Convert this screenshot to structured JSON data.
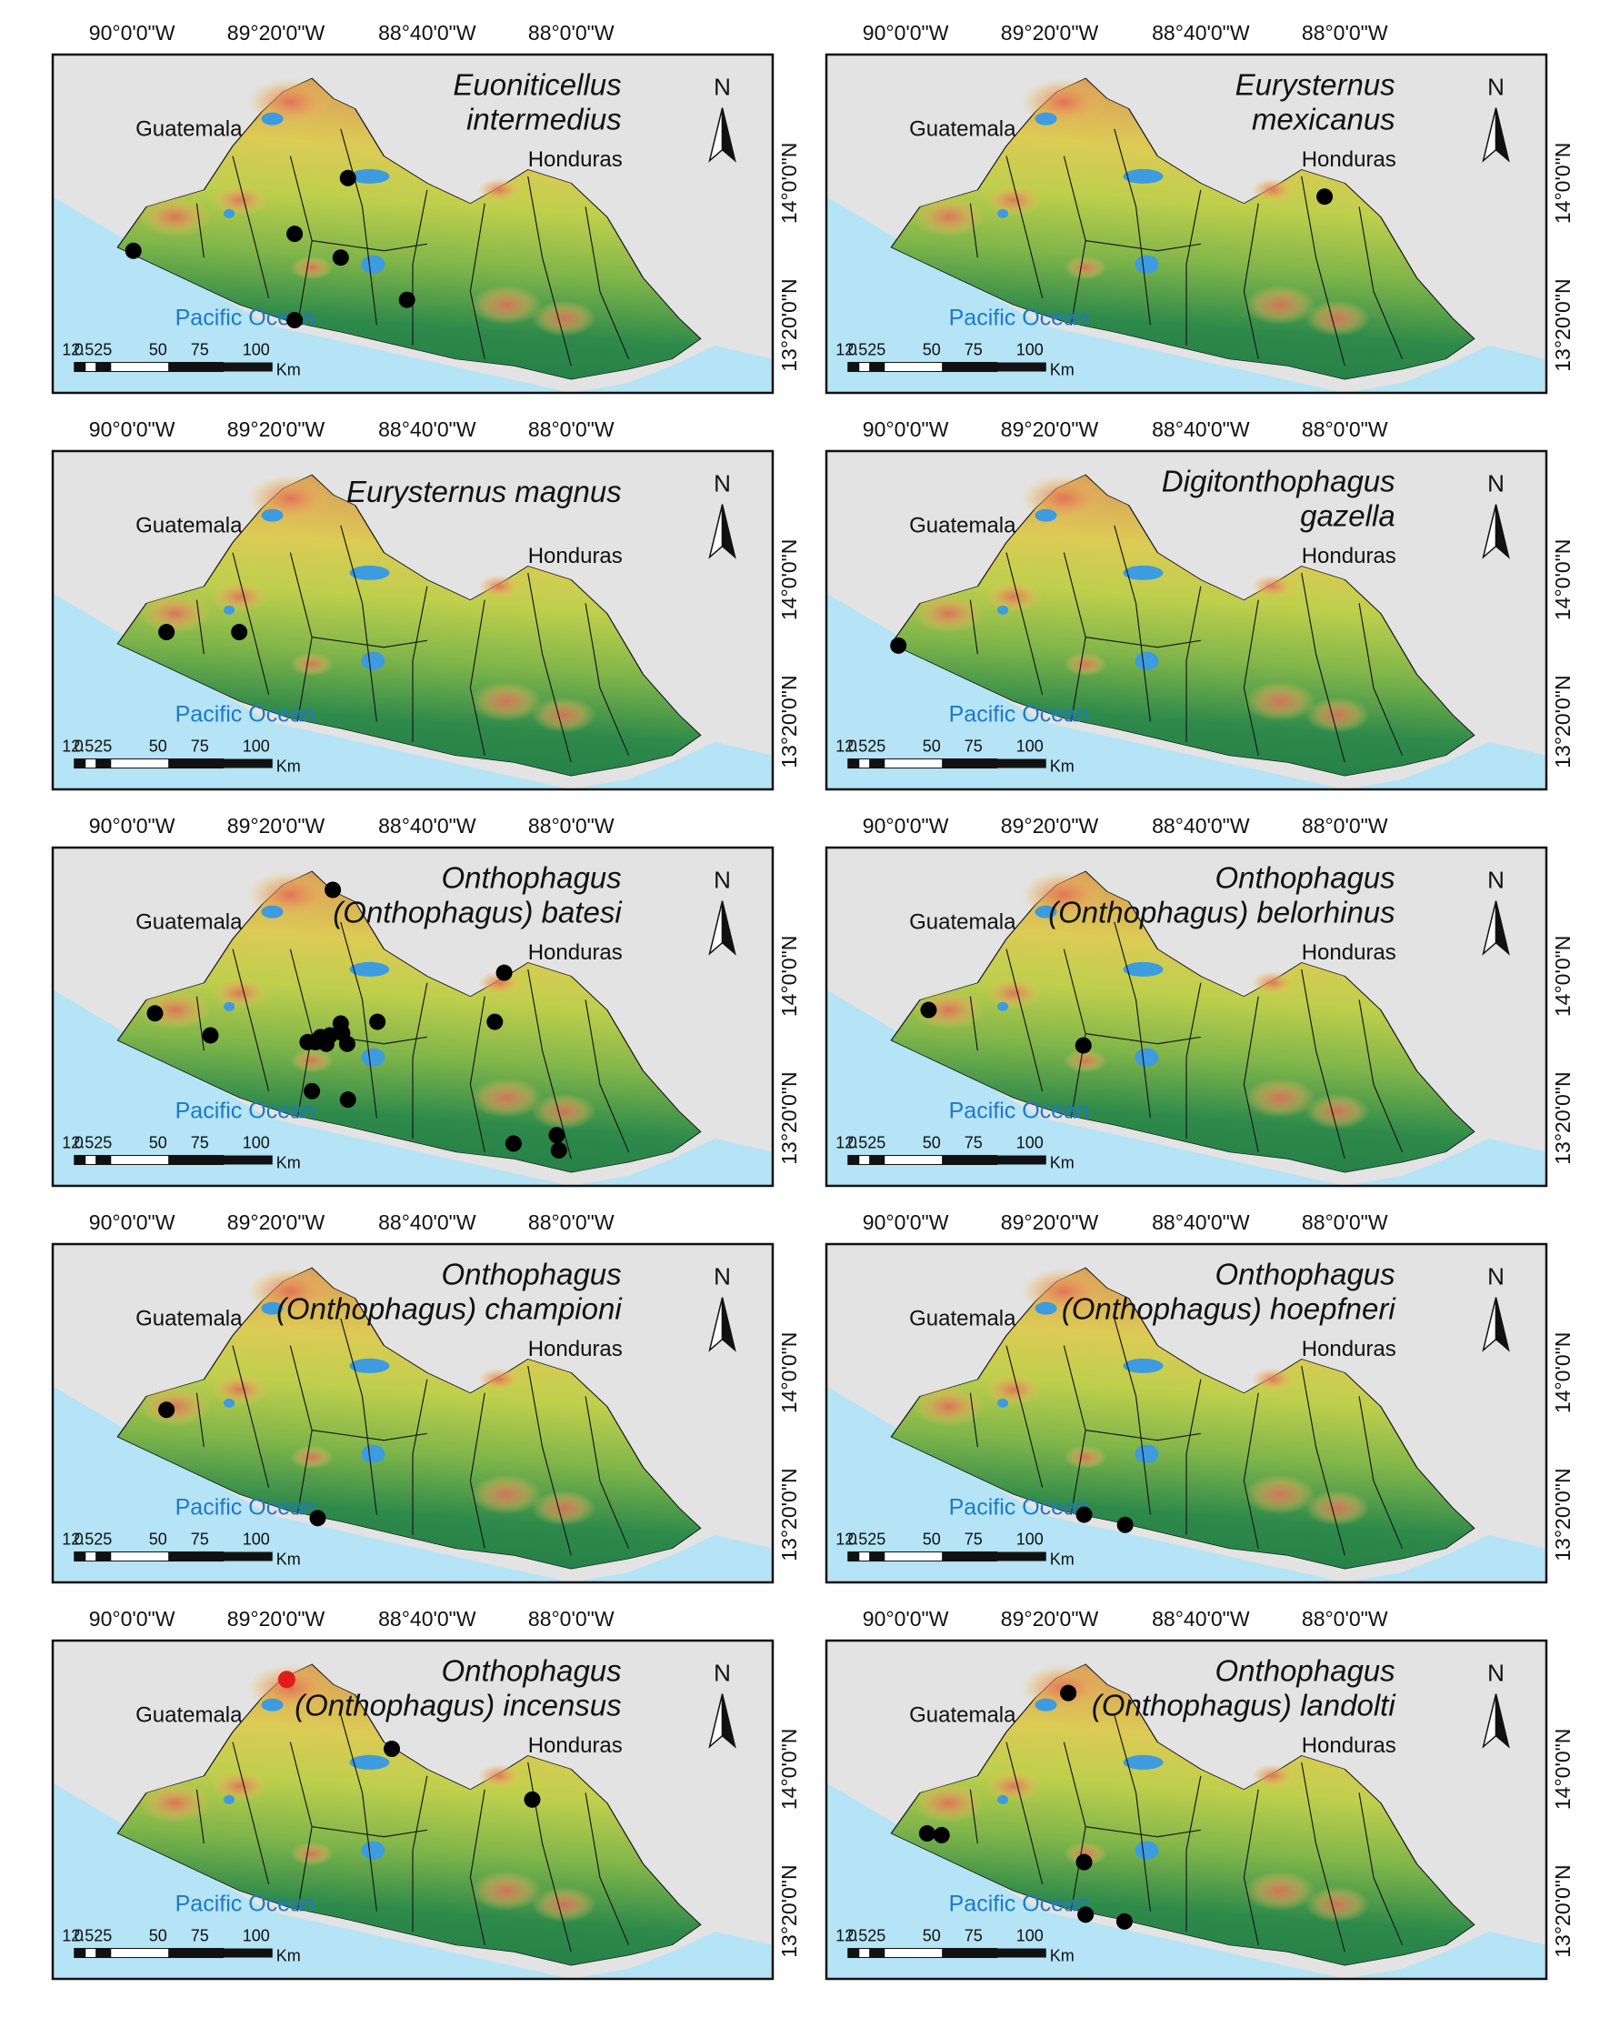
{
  "figure": {
    "lon_ticks": [
      "90°0'0\"W",
      "89°20'0\"W",
      "88°40'0\"W",
      "88°0'0\"W"
    ],
    "lat_ticks": [
      "14°0'0\"N",
      "13°20'0\"N"
    ],
    "labels": {
      "guatemala": "Guatemala",
      "honduras": "Honduras",
      "ocean": "Pacific Ocean",
      "north": "N"
    },
    "scale": {
      "ticks": [
        "0",
        "12.525",
        "50",
        "75",
        "100"
      ],
      "unit": "Km"
    },
    "colors": {
      "ocean": "#b4e4f5",
      "outside": "#e3e3e3",
      "lowland": "#2e8a4a",
      "midland": "#9cc24a",
      "highland": "#dccb55",
      "peak": "#d9735a",
      "lake": "#3d9be0",
      "point": "#000000",
      "highlight_point": "#e21b1b"
    }
  },
  "panels": [
    {
      "species": [
        "Euoniticellus",
        "intermedius"
      ],
      "points": [
        [
          0.112,
          0.58
        ],
        [
          0.336,
          0.53
        ],
        [
          0.41,
          0.365
        ],
        [
          0.4,
          0.6
        ],
        [
          0.336,
          0.785
        ],
        [
          0.492,
          0.725
        ]
      ]
    },
    {
      "species": [
        "Eurysternus",
        "mexicanus"
      ],
      "points": [
        [
          0.692,
          0.42
        ]
      ]
    },
    {
      "species": [
        "Eurysternus magnus"
      ],
      "points": [
        [
          0.158,
          0.535
        ],
        [
          0.259,
          0.535
        ]
      ]
    },
    {
      "species": [
        "Digitonthophagus",
        "gazella"
      ],
      "points": [
        [
          0.1,
          0.575
        ]
      ]
    },
    {
      "species": [
        "Onthophagus",
        "(Onthophagus) batesi"
      ],
      "points": [
        [
          0.389,
          0.125
        ],
        [
          0.142,
          0.49
        ],
        [
          0.219,
          0.555
        ],
        [
          0.354,
          0.575
        ],
        [
          0.372,
          0.56
        ],
        [
          0.385,
          0.555
        ],
        [
          0.402,
          0.548
        ],
        [
          0.409,
          0.58
        ],
        [
          0.38,
          0.58
        ],
        [
          0.365,
          0.575
        ],
        [
          0.4,
          0.52
        ],
        [
          0.451,
          0.515
        ],
        [
          0.627,
          0.37
        ],
        [
          0.614,
          0.515
        ],
        [
          0.41,
          0.745
        ],
        [
          0.36,
          0.72
        ],
        [
          0.64,
          0.875
        ],
        [
          0.7,
          0.85
        ],
        [
          0.703,
          0.895
        ]
      ]
    },
    {
      "species": [
        "Onthophagus",
        "(Onthophagus) belorhinus"
      ],
      "points": [
        [
          0.142,
          0.48
        ],
        [
          0.357,
          0.585
        ]
      ]
    },
    {
      "species": [
        "Onthophagus",
        "(Onthophagus) championi"
      ],
      "points": [
        [
          0.158,
          0.49
        ],
        [
          0.368,
          0.81
        ]
      ]
    },
    {
      "species": [
        "Onthophagus",
        "(Onthophagus) hoepfneri"
      ],
      "points": [
        [
          0.358,
          0.8
        ],
        [
          0.415,
          0.83
        ]
      ]
    },
    {
      "species": [
        "Onthophagus",
        "(Onthophagus) incensus"
      ],
      "points": [
        [
          0.325,
          0.115
        ],
        [
          0.471,
          0.32
        ],
        [
          0.666,
          0.47
        ]
      ],
      "highlight": [
        [
          0.325,
          0.115
        ]
      ]
    },
    {
      "species": [
        "Onthophagus",
        "(Onthophagus) landolti"
      ],
      "points": [
        [
          0.14,
          0.57
        ],
        [
          0.16,
          0.575
        ],
        [
          0.336,
          0.155
        ],
        [
          0.358,
          0.655
        ],
        [
          0.36,
          0.81
        ],
        [
          0.414,
          0.83
        ]
      ]
    }
  ]
}
